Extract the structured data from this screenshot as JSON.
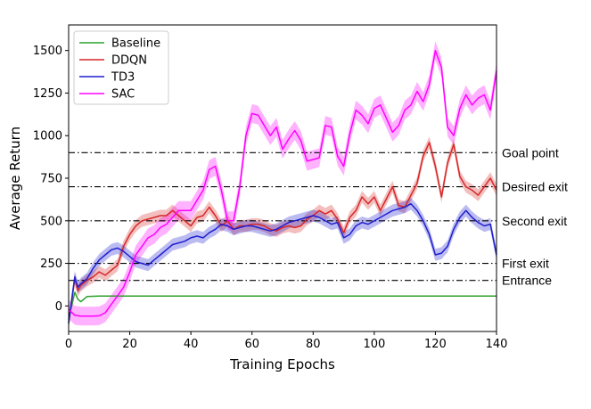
{
  "chart_data": {
    "type": "line",
    "xlabel": "Training Epochs",
    "ylabel": "Average Return",
    "xlim": [
      0,
      140
    ],
    "ylim": [
      -150,
      1650
    ],
    "xticks": [
      0,
      20,
      40,
      60,
      80,
      100,
      120,
      140
    ],
    "yticks": [
      0,
      250,
      500,
      750,
      1000,
      1250,
      1500
    ],
    "legend_position": "top-left",
    "reference_lines": [
      {
        "label": "Goal point",
        "value": 900
      },
      {
        "label": "Desired exit",
        "value": 700
      },
      {
        "label": "Second exit",
        "value": 500
      },
      {
        "label": "First exit",
        "value": 250
      },
      {
        "label": "Entrance",
        "value": 150
      }
    ],
    "series": [
      {
        "name": "Baseline",
        "color": "#2ca02c",
        "x": [
          0,
          2,
          3,
          4,
          6,
          10,
          20,
          40,
          60,
          80,
          100,
          120,
          140
        ],
        "y": [
          -80,
          80,
          40,
          25,
          55,
          58,
          58,
          58,
          58,
          58,
          58,
          58,
          58
        ],
        "band": 0
      },
      {
        "name": "DDQN",
        "color": "#d62728",
        "x": [
          0,
          2,
          3,
          4,
          6,
          8,
          10,
          12,
          14,
          16,
          18,
          20,
          22,
          24,
          26,
          28,
          30,
          32,
          34,
          36,
          38,
          40,
          42,
          44,
          46,
          48,
          50,
          52,
          54,
          56,
          58,
          60,
          62,
          64,
          66,
          68,
          70,
          72,
          74,
          76,
          78,
          80,
          82,
          84,
          86,
          88,
          90,
          92,
          94,
          96,
          98,
          100,
          102,
          104,
          106,
          108,
          110,
          112,
          114,
          116,
          118,
          120,
          122,
          124,
          126,
          128,
          130,
          132,
          134,
          136,
          138,
          140
        ],
        "y": [
          -100,
          160,
          90,
          120,
          150,
          170,
          200,
          180,
          210,
          240,
          350,
          420,
          470,
          500,
          510,
          520,
          530,
          530,
          560,
          530,
          500,
          470,
          520,
          530,
          580,
          530,
          470,
          500,
          450,
          470,
          470,
          480,
          480,
          470,
          450,
          440,
          460,
          470,
          460,
          470,
          510,
          530,
          560,
          540,
          560,
          510,
          430,
          520,
          560,
          640,
          600,
          640,
          560,
          630,
          700,
          590,
          580,
          650,
          720,
          880,
          960,
          820,
          640,
          840,
          950,
          760,
          700,
          680,
          650,
          700,
          750,
          680
        ],
        "band": 35
      },
      {
        "name": "TD3",
        "color": "#1f1fd0",
        "x": [
          0,
          2,
          3,
          4,
          6,
          8,
          10,
          12,
          14,
          16,
          18,
          20,
          22,
          24,
          26,
          28,
          30,
          32,
          34,
          36,
          38,
          40,
          42,
          44,
          46,
          48,
          50,
          52,
          54,
          56,
          58,
          60,
          62,
          64,
          66,
          68,
          70,
          72,
          74,
          76,
          78,
          80,
          82,
          84,
          86,
          88,
          90,
          92,
          94,
          96,
          98,
          100,
          102,
          104,
          106,
          108,
          110,
          112,
          114,
          116,
          118,
          120,
          122,
          124,
          126,
          128,
          130,
          132,
          134,
          136,
          138,
          140
        ],
        "y": [
          -100,
          170,
          110,
          130,
          160,
          220,
          270,
          300,
          330,
          340,
          320,
          290,
          260,
          250,
          240,
          270,
          300,
          330,
          360,
          370,
          380,
          400,
          410,
          400,
          430,
          450,
          480,
          470,
          450,
          460,
          470,
          470,
          460,
          450,
          440,
          450,
          470,
          490,
          500,
          510,
          520,
          530,
          520,
          500,
          480,
          490,
          400,
          420,
          470,
          490,
          480,
          500,
          520,
          540,
          560,
          570,
          580,
          600,
          560,
          500,
          420,
          300,
          310,
          350,
          450,
          520,
          560,
          520,
          490,
          470,
          480,
          300
        ],
        "band": 35
      },
      {
        "name": "SAC",
        "color": "#ff00ff",
        "x": [
          0,
          2,
          4,
          6,
          8,
          10,
          12,
          14,
          16,
          18,
          20,
          22,
          24,
          26,
          28,
          30,
          32,
          34,
          36,
          38,
          40,
          42,
          44,
          46,
          48,
          50,
          52,
          54,
          56,
          58,
          60,
          62,
          64,
          66,
          68,
          70,
          72,
          74,
          76,
          78,
          80,
          82,
          84,
          86,
          88,
          90,
          92,
          94,
          96,
          98,
          100,
          102,
          104,
          106,
          108,
          110,
          112,
          114,
          116,
          118,
          120,
          122,
          124,
          126,
          128,
          130,
          132,
          134,
          136,
          138,
          140
        ],
        "y": [
          -20,
          -55,
          -60,
          -60,
          -60,
          -58,
          -40,
          10,
          60,
          110,
          200,
          300,
          350,
          400,
          420,
          460,
          480,
          520,
          560,
          560,
          560,
          620,
          680,
          800,
          820,
          680,
          500,
          500,
          700,
          1000,
          1130,
          1120,
          1060,
          1000,
          1050,
          920,
          980,
          1030,
          970,
          850,
          860,
          870,
          1060,
          1050,
          880,
          820,
          1010,
          1150,
          1120,
          1070,
          1160,
          1180,
          1100,
          1020,
          1060,
          1150,
          1180,
          1260,
          1200,
          1300,
          1500,
          1400,
          1050,
          1000,
          1160,
          1240,
          1180,
          1220,
          1240,
          1150,
          1380
        ],
        "band": 55
      }
    ]
  }
}
